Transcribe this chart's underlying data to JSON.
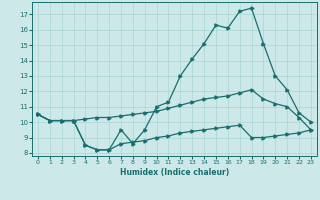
{
  "title": "",
  "xlabel": "Humidex (Indice chaleur)",
  "background_color": "#cce8e8",
  "grid_color": "#aad4d4",
  "line_color": "#1a6e6e",
  "xlim": [
    -0.5,
    23.5
  ],
  "ylim": [
    7.8,
    17.8
  ],
  "yticks": [
    8,
    9,
    10,
    11,
    12,
    13,
    14,
    15,
    16,
    17
  ],
  "xticks": [
    0,
    1,
    2,
    3,
    4,
    5,
    6,
    7,
    8,
    9,
    10,
    11,
    12,
    13,
    14,
    15,
    16,
    17,
    18,
    19,
    20,
    21,
    22,
    23
  ],
  "line1_x": [
    0,
    1,
    2,
    3,
    4,
    5,
    6,
    7,
    8,
    9,
    10,
    11,
    12,
    13,
    14,
    15,
    16,
    17,
    18,
    19,
    20,
    21,
    22,
    23
  ],
  "line1_y": [
    10.5,
    10.1,
    10.1,
    10.1,
    8.5,
    8.2,
    8.2,
    9.5,
    8.6,
    9.5,
    11.0,
    11.3,
    13.0,
    14.1,
    15.1,
    16.3,
    16.1,
    17.2,
    17.4,
    15.1,
    13.0,
    12.1,
    10.6,
    10.0
  ],
  "line2_x": [
    0,
    1,
    2,
    3,
    4,
    5,
    6,
    7,
    8,
    9,
    10,
    11,
    12,
    13,
    14,
    15,
    16,
    17,
    18,
    19,
    20,
    21,
    22,
    23
  ],
  "line2_y": [
    10.5,
    10.1,
    10.1,
    10.1,
    10.2,
    10.3,
    10.3,
    10.4,
    10.5,
    10.6,
    10.7,
    10.9,
    11.1,
    11.3,
    11.5,
    11.6,
    11.7,
    11.9,
    12.1,
    11.5,
    11.2,
    11.0,
    10.3,
    9.5
  ],
  "line3_x": [
    0,
    1,
    2,
    3,
    4,
    5,
    6,
    7,
    8,
    9,
    10,
    11,
    12,
    13,
    14,
    15,
    16,
    17,
    18,
    19,
    20,
    21,
    22,
    23
  ],
  "line3_y": [
    10.5,
    10.1,
    10.1,
    10.1,
    8.5,
    8.2,
    8.2,
    8.6,
    8.7,
    8.8,
    9.0,
    9.1,
    9.3,
    9.4,
    9.5,
    9.6,
    9.7,
    9.8,
    9.0,
    9.0,
    9.1,
    9.2,
    9.3,
    9.5
  ]
}
